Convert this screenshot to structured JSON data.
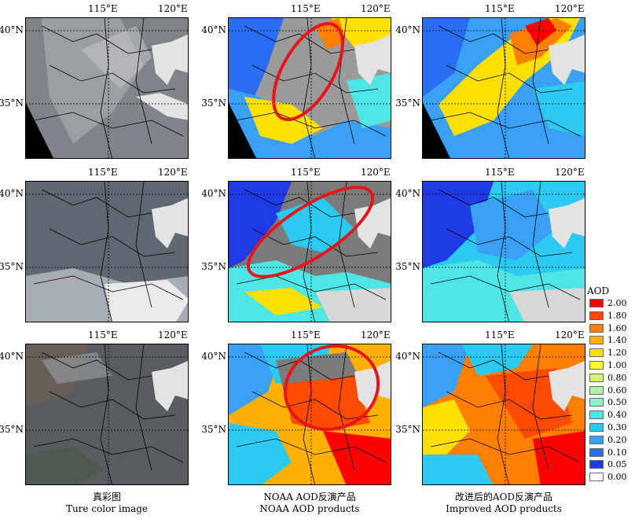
{
  "lon_labels": [
    "115°E",
    "120°E"
  ],
  "lat_labels": [
    "40°N",
    "35°N"
  ],
  "captions": [
    {
      "cn": "真彩图",
      "en": "Ture color image"
    },
    {
      "cn": "NOAA AOD反演产品",
      "en": "NOAA AOD products"
    },
    {
      "cn": "改进后的AOD反演产品",
      "en": "Improved AOD products"
    }
  ],
  "legend": {
    "title": "AOD",
    "entries": [
      {
        "label": "2.00",
        "color": "#ff0000"
      },
      {
        "label": "1.80",
        "color": "#ff4b00"
      },
      {
        "label": "1.60",
        "color": "#ff7f00"
      },
      {
        "label": "1.40",
        "color": "#ffb000"
      },
      {
        "label": "1.20",
        "color": "#ffe000"
      },
      {
        "label": "1.00",
        "color": "#ffff33"
      },
      {
        "label": "0.80",
        "color": "#d7f26b"
      },
      {
        "label": "0.60",
        "color": "#b5f2a0"
      },
      {
        "label": "0.50",
        "color": "#8ff2c8"
      },
      {
        "label": "0.40",
        "color": "#4fe5e5"
      },
      {
        "label": "0.30",
        "color": "#2ccaf0"
      },
      {
        "label": "0.20",
        "color": "#3aa0f5"
      },
      {
        "label": "0.10",
        "color": "#2a6cf2"
      },
      {
        "label": "0.05",
        "color": "#1f3be6"
      },
      {
        "label": "0.00",
        "color": "#ffffff"
      }
    ]
  },
  "panels": [
    {
      "kind": "rgb",
      "row": 1,
      "col": 1,
      "fill": "#7e8489"
    },
    {
      "kind": "aod",
      "row": 1,
      "col": 2,
      "fill": "#9a9a9a",
      "highlight": true
    },
    {
      "kind": "aod",
      "row": 1,
      "col": 3,
      "fill": "#3aa0f5"
    },
    {
      "kind": "rgb",
      "row": 2,
      "col": 1,
      "fill": "#5f6873"
    },
    {
      "kind": "aod",
      "row": 2,
      "col": 2,
      "fill": "#7b7b7b",
      "highlight": true
    },
    {
      "kind": "aod",
      "row": 2,
      "col": 3,
      "fill": "#2ccaf0"
    },
    {
      "kind": "rgb",
      "row": 3,
      "col": 1,
      "fill": "#5a5d60"
    },
    {
      "kind": "aod",
      "row": 3,
      "col": 2,
      "fill": "#ffb000",
      "highlight": true
    },
    {
      "kind": "aod",
      "row": 3,
      "col": 3,
      "fill": "#ff7f00"
    }
  ]
}
